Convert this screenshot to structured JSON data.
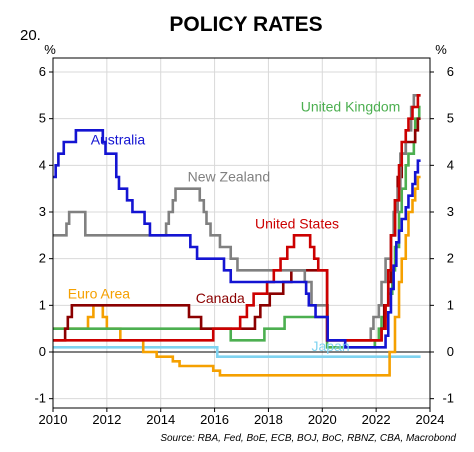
{
  "figure_number": "20.",
  "chart_data": {
    "type": "line",
    "title": "POLICY RATES",
    "ylabel_left": "%",
    "ylabel_right": "%",
    "ylim": [
      -1.2,
      6.3
    ],
    "xlim": [
      2010,
      2024
    ],
    "yticks": [
      "-1",
      "0",
      "1",
      "2",
      "3",
      "4",
      "5",
      "6"
    ],
    "xticks": [
      "2010",
      "2012",
      "2014",
      "2016",
      "2018",
      "2020",
      "2022",
      "2024"
    ],
    "grid": true,
    "source": "Source: RBA, Fed, BoE, ECB, BOJ, BoC, RBNZ, CBA, Macrobond",
    "series": [
      {
        "name": "Australia",
        "color": "#1414d2",
        "points": [
          [
            2010.0,
            3.75
          ],
          [
            2010.1,
            4.0
          ],
          [
            2010.2,
            4.25
          ],
          [
            2010.4,
            4.5
          ],
          [
            2010.85,
            4.75
          ],
          [
            2011.85,
            4.5
          ],
          [
            2011.95,
            4.25
          ],
          [
            2012.35,
            3.75
          ],
          [
            2012.45,
            3.5
          ],
          [
            2012.75,
            3.25
          ],
          [
            2012.95,
            3.0
          ],
          [
            2013.4,
            2.75
          ],
          [
            2013.6,
            2.5
          ],
          [
            2015.1,
            2.25
          ],
          [
            2015.35,
            2.0
          ],
          [
            2016.35,
            1.75
          ],
          [
            2016.6,
            1.5
          ],
          [
            2019.4,
            1.25
          ],
          [
            2019.5,
            1.0
          ],
          [
            2019.75,
            0.75
          ],
          [
            2020.2,
            0.25
          ],
          [
            2020.85,
            0.1
          ],
          [
            2022.35,
            0.35
          ],
          [
            2022.45,
            0.85
          ],
          [
            2022.55,
            1.35
          ],
          [
            2022.65,
            1.85
          ],
          [
            2022.75,
            2.35
          ],
          [
            2022.85,
            2.6
          ],
          [
            2022.95,
            2.85
          ],
          [
            2023.1,
            3.1
          ],
          [
            2023.2,
            3.35
          ],
          [
            2023.35,
            3.6
          ],
          [
            2023.45,
            3.85
          ],
          [
            2023.55,
            4.1
          ],
          [
            2023.65,
            4.1
          ]
        ]
      },
      {
        "name": "New Zealand",
        "color": "#808080",
        "points": [
          [
            2010.0,
            2.5
          ],
          [
            2010.5,
            2.75
          ],
          [
            2010.6,
            3.0
          ],
          [
            2011.2,
            2.5
          ],
          [
            2014.2,
            2.75
          ],
          [
            2014.3,
            3.0
          ],
          [
            2014.45,
            3.25
          ],
          [
            2014.55,
            3.5
          ],
          [
            2015.45,
            3.25
          ],
          [
            2015.6,
            3.0
          ],
          [
            2015.7,
            2.75
          ],
          [
            2015.85,
            2.5
          ],
          [
            2016.2,
            2.25
          ],
          [
            2016.6,
            2.0
          ],
          [
            2016.85,
            1.75
          ],
          [
            2019.35,
            1.5
          ],
          [
            2019.6,
            1.0
          ],
          [
            2020.2,
            0.25
          ],
          [
            2021.8,
            0.5
          ],
          [
            2021.9,
            0.75
          ],
          [
            2022.1,
            1.0
          ],
          [
            2022.2,
            1.5
          ],
          [
            2022.35,
            2.0
          ],
          [
            2022.55,
            2.5
          ],
          [
            2022.65,
            3.0
          ],
          [
            2022.8,
            3.5
          ],
          [
            2022.9,
            4.25
          ],
          [
            2023.1,
            4.75
          ],
          [
            2023.3,
            5.25
          ],
          [
            2023.4,
            5.5
          ],
          [
            2023.65,
            5.5
          ]
        ]
      },
      {
        "name": "United States",
        "color": "#cc0000",
        "points": [
          [
            2010.0,
            0.25
          ],
          [
            2015.95,
            0.5
          ],
          [
            2016.95,
            0.75
          ],
          [
            2017.2,
            1.0
          ],
          [
            2017.45,
            1.25
          ],
          [
            2017.95,
            1.5
          ],
          [
            2018.2,
            1.75
          ],
          [
            2018.45,
            2.0
          ],
          [
            2018.7,
            2.25
          ],
          [
            2018.95,
            2.5
          ],
          [
            2019.55,
            2.25
          ],
          [
            2019.7,
            2.0
          ],
          [
            2019.85,
            1.75
          ],
          [
            2020.18,
            0.25
          ],
          [
            2022.2,
            0.5
          ],
          [
            2022.35,
            1.0
          ],
          [
            2022.45,
            1.75
          ],
          [
            2022.55,
            2.5
          ],
          [
            2022.7,
            3.25
          ],
          [
            2022.85,
            4.0
          ],
          [
            2022.95,
            4.5
          ],
          [
            2023.1,
            4.75
          ],
          [
            2023.2,
            5.0
          ],
          [
            2023.35,
            5.25
          ],
          [
            2023.55,
            5.5
          ],
          [
            2023.65,
            5.5
          ]
        ]
      },
      {
        "name": "United Kingdom",
        "color": "#4caf50",
        "points": [
          [
            2010.0,
            0.5
          ],
          [
            2016.6,
            0.25
          ],
          [
            2017.85,
            0.5
          ],
          [
            2018.6,
            0.75
          ],
          [
            2020.18,
            0.1
          ],
          [
            2021.95,
            0.25
          ],
          [
            2022.1,
            0.5
          ],
          [
            2022.2,
            0.75
          ],
          [
            2022.35,
            1.0
          ],
          [
            2022.45,
            1.25
          ],
          [
            2022.6,
            1.75
          ],
          [
            2022.7,
            2.25
          ],
          [
            2022.85,
            3.0
          ],
          [
            2022.95,
            3.5
          ],
          [
            2023.1,
            4.0
          ],
          [
            2023.2,
            4.25
          ],
          [
            2023.4,
            4.5
          ],
          [
            2023.45,
            5.0
          ],
          [
            2023.6,
            5.25
          ],
          [
            2023.65,
            5.25
          ]
        ]
      },
      {
        "name": "Euro Area",
        "color": "#f5a000",
        "points": [
          [
            2010.0,
            0.5
          ],
          [
            2011.3,
            0.75
          ],
          [
            2011.5,
            1.0
          ],
          [
            2011.85,
            0.75
          ],
          [
            2012.0,
            0.5
          ],
          [
            2012.5,
            0.25
          ],
          [
            2013.35,
            0.0
          ],
          [
            2013.85,
            -0.1
          ],
          [
            2014.45,
            -0.2
          ],
          [
            2014.7,
            -0.3
          ],
          [
            2015.95,
            -0.4
          ],
          [
            2016.2,
            -0.5
          ],
          [
            2022.5,
            0.0
          ],
          [
            2022.7,
            0.75
          ],
          [
            2022.85,
            1.5
          ],
          [
            2022.95,
            2.0
          ],
          [
            2023.1,
            2.5
          ],
          [
            2023.2,
            3.0
          ],
          [
            2023.35,
            3.25
          ],
          [
            2023.45,
            3.5
          ],
          [
            2023.55,
            3.75
          ],
          [
            2023.65,
            3.75
          ]
        ]
      },
      {
        "name": "Canada",
        "color": "#8b0000",
        "points": [
          [
            2010.0,
            0.25
          ],
          [
            2010.45,
            0.5
          ],
          [
            2010.55,
            0.75
          ],
          [
            2010.7,
            1.0
          ],
          [
            2015.05,
            0.75
          ],
          [
            2015.5,
            0.5
          ],
          [
            2017.5,
            0.75
          ],
          [
            2017.7,
            1.0
          ],
          [
            2018.05,
            1.25
          ],
          [
            2018.55,
            1.5
          ],
          [
            2018.85,
            1.75
          ],
          [
            2020.18,
            0.25
          ],
          [
            2022.2,
            0.5
          ],
          [
            2022.3,
            1.0
          ],
          [
            2022.45,
            1.5
          ],
          [
            2022.55,
            2.5
          ],
          [
            2022.7,
            3.25
          ],
          [
            2022.8,
            3.75
          ],
          [
            2022.95,
            4.25
          ],
          [
            2023.1,
            4.5
          ],
          [
            2023.45,
            4.75
          ],
          [
            2023.55,
            5.0
          ],
          [
            2023.65,
            5.0
          ]
        ]
      },
      {
        "name": "Japan",
        "color": "#7fd3f0",
        "points": [
          [
            2010.0,
            0.1
          ],
          [
            2016.1,
            -0.1
          ],
          [
            2023.65,
            -0.1
          ]
        ]
      }
    ],
    "labels": [
      {
        "series": "Australia",
        "x": 2011.4,
        "y": 4.45
      },
      {
        "series": "New Zealand",
        "x": 2015.0,
        "y": 3.65
      },
      {
        "series": "United States",
        "x": 2017.5,
        "y": 2.65
      },
      {
        "series": "United Kingdom",
        "x": 2019.2,
        "y": 5.15
      },
      {
        "series": "Euro Area",
        "x": 2010.55,
        "y": 1.15
      },
      {
        "series": "Canada",
        "x": 2015.3,
        "y": 1.05
      },
      {
        "series": "Japan",
        "x": 2019.6,
        "y": 0.02
      }
    ]
  }
}
